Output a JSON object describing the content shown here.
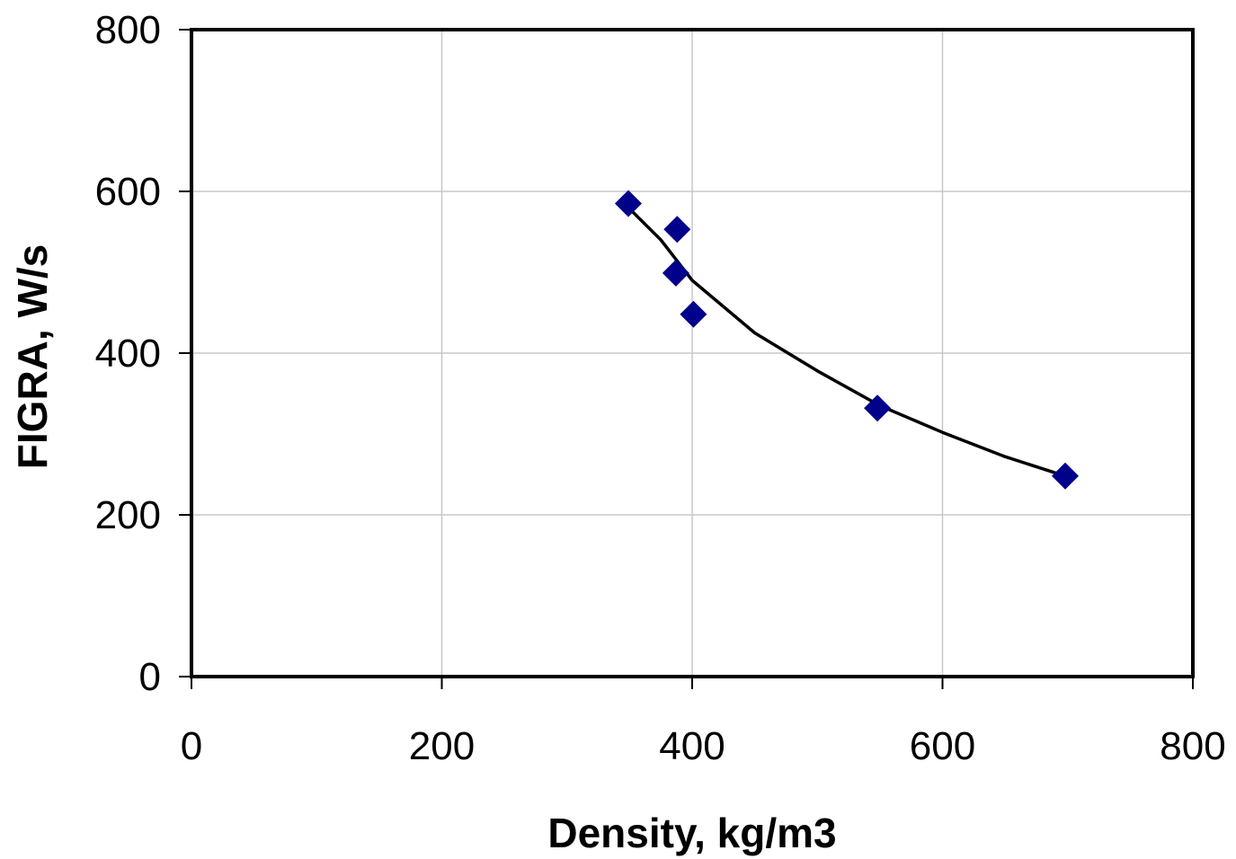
{
  "chart_data": {
    "type": "scatter",
    "title": "",
    "xlabel": "Density, kg/m3",
    "ylabel": "FIGRA, W/s",
    "xlim": [
      0,
      800
    ],
    "ylim": [
      0,
      800
    ],
    "x_ticks": [
      0,
      200,
      400,
      600,
      800
    ],
    "y_ticks": [
      0,
      200,
      400,
      600,
      800
    ],
    "x_tick_labels": [
      "0",
      "200",
      "400",
      "600",
      "800"
    ],
    "y_tick_labels": [
      "0",
      "200",
      "400",
      "600",
      "800"
    ],
    "grid": true,
    "legend": "none",
    "series": [
      {
        "type": "scatter",
        "marker": "diamond",
        "color": "#00008B",
        "points": [
          {
            "x": 349,
            "y": 585
          },
          {
            "x": 388,
            "y": 553
          },
          {
            "x": 387,
            "y": 499
          },
          {
            "x": 401,
            "y": 448
          },
          {
            "x": 548,
            "y": 332
          },
          {
            "x": 698,
            "y": 248
          }
        ]
      },
      {
        "type": "line",
        "style": "trendline",
        "color": "#000000",
        "points": [
          {
            "x": 349,
            "y": 580
          },
          {
            "x": 375,
            "y": 540
          },
          {
            "x": 400,
            "y": 490
          },
          {
            "x": 450,
            "y": 425
          },
          {
            "x": 500,
            "y": 378
          },
          {
            "x": 550,
            "y": 335
          },
          {
            "x": 600,
            "y": 302
          },
          {
            "x": 650,
            "y": 272
          },
          {
            "x": 698,
            "y": 248
          }
        ]
      }
    ]
  }
}
